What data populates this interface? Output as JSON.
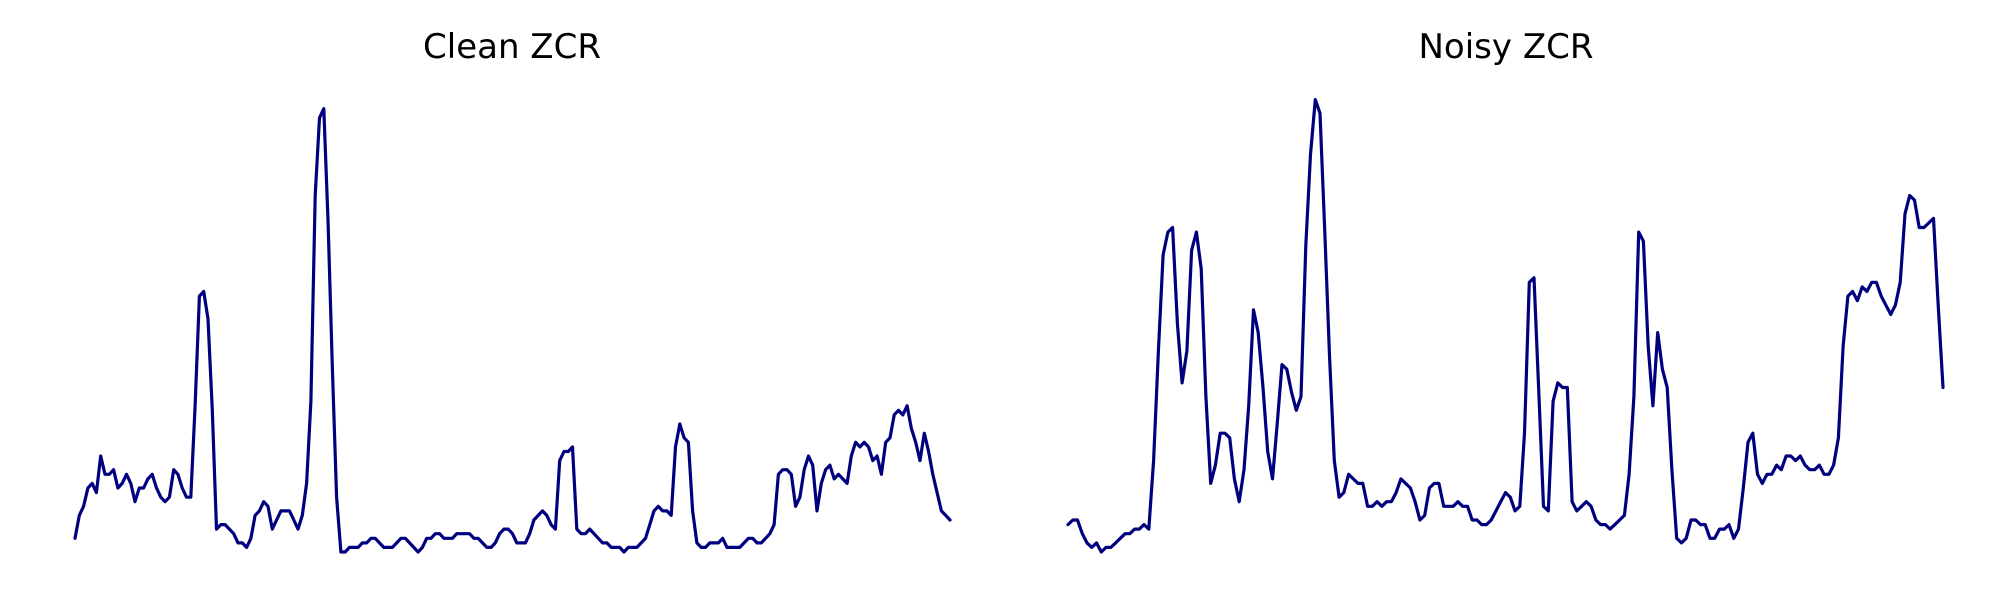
{
  "chart_data": [
    {
      "type": "line",
      "title": "Clean ZCR",
      "xlabel": "",
      "ylabel": "",
      "axes_visible": false,
      "grid": false,
      "color": "#00007f",
      "ylim": [
        0,
        100
      ],
      "series": [
        {
          "values": [
            3,
            8,
            10,
            14,
            15,
            13,
            21,
            17,
            17,
            18,
            14,
            15,
            17,
            15,
            11,
            14,
            14,
            16,
            17,
            14,
            12,
            11,
            12,
            18,
            17,
            14,
            12,
            12,
            32,
            56,
            57,
            51,
            31,
            5,
            6,
            6,
            5,
            4,
            2,
            2,
            1,
            3,
            8,
            9,
            11,
            10,
            5,
            7,
            9,
            9,
            9,
            7,
            5,
            8,
            15,
            33,
            78,
            95,
            97,
            72,
            40,
            12,
            0,
            0,
            1,
            1,
            1,
            2,
            2,
            3,
            3,
            2,
            1,
            1,
            1,
            2,
            3,
            3,
            2,
            1,
            0,
            1,
            3,
            3,
            4,
            4,
            3,
            3,
            3,
            4,
            4,
            4,
            4,
            3,
            3,
            2,
            1,
            1,
            2,
            4,
            5,
            5,
            4,
            2,
            2,
            2,
            4,
            7,
            8,
            9,
            8,
            6,
            5,
            20,
            22,
            22,
            23,
            5,
            4,
            4,
            5,
            4,
            3,
            2,
            2,
            1,
            1,
            1,
            0,
            1,
            1,
            1,
            2,
            3,
            6,
            9,
            10,
            9,
            9,
            8,
            23,
            28,
            25,
            24,
            9,
            2,
            1,
            1,
            2,
            2,
            2,
            3,
            1,
            1,
            1,
            1,
            2,
            3,
            3,
            2,
            2,
            3,
            4,
            6,
            17,
            18,
            18,
            17,
            10,
            12,
            18,
            21,
            19,
            9,
            15,
            18,
            19,
            16,
            17,
            16,
            15,
            21,
            24,
            23,
            24,
            23,
            20,
            21,
            17,
            24,
            25,
            30,
            31,
            30,
            32,
            27,
            24,
            20,
            26,
            22,
            17,
            13,
            9,
            8,
            7
          ]
        }
      ]
    },
    {
      "type": "line",
      "title": "Noisy ZCR",
      "xlabel": "",
      "ylabel": "",
      "axes_visible": false,
      "grid": false,
      "color": "#00007f",
      "ylim": [
        0,
        100
      ],
      "series": [
        {
          "values": [
            6,
            7,
            7,
            4,
            2,
            1,
            2,
            0,
            1,
            1,
            2,
            3,
            4,
            4,
            5,
            5,
            6,
            5,
            20,
            44,
            65,
            70,
            71,
            50,
            37,
            44,
            66,
            70,
            62,
            34,
            15,
            19,
            26,
            26,
            25,
            16,
            11,
            18,
            32,
            53,
            48,
            36,
            22,
            16,
            28,
            41,
            40,
            35,
            31,
            34,
            67,
            87,
            99,
            96,
            70,
            43,
            20,
            12,
            13,
            17,
            16,
            15,
            15,
            10,
            10,
            11,
            10,
            11,
            11,
            13,
            16,
            15,
            14,
            11,
            7,
            8,
            14,
            15,
            15,
            10,
            10,
            10,
            11,
            10,
            10,
            7,
            7,
            6,
            6,
            7,
            9,
            11,
            13,
            12,
            9,
            10,
            26,
            59,
            60,
            35,
            10,
            9,
            33,
            37,
            36,
            36,
            11,
            9,
            10,
            11,
            10,
            7,
            6,
            6,
            5,
            6,
            7,
            8,
            17,
            34,
            70,
            68,
            45,
            32,
            48,
            40,
            36,
            18,
            3,
            2,
            3,
            7,
            7,
            6,
            6,
            3,
            3,
            5,
            5,
            6,
            3,
            5,
            14,
            24,
            26,
            17,
            15,
            17,
            17,
            19,
            18,
            21,
            21,
            20,
            21,
            19,
            18,
            18,
            19,
            17,
            17,
            19,
            25,
            45,
            56,
            57,
            55,
            58,
            57,
            59,
            59,
            56,
            54,
            52,
            54,
            59,
            74,
            78,
            77,
            71,
            71,
            72,
            73,
            54,
            36
          ]
        }
      ]
    }
  ]
}
